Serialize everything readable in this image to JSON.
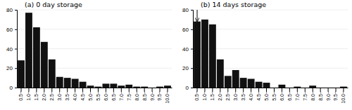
{
  "chart_data": [
    {
      "type": "bar",
      "title": "(a) 0 day storage",
      "categories": [
        "0.5~",
        "1.0~",
        "1.5~",
        "2.0~",
        "2.5~",
        "3.0~",
        "3.5~",
        "4.0~",
        "4.5~",
        "5.0~",
        "5.5~",
        "6.0~",
        "6.5~",
        "7.0~",
        "7.5~",
        "8.0~",
        "8.5~",
        "9.0~",
        "9.5~",
        "10.0~"
      ],
      "values": [
        28,
        77,
        62,
        47,
        29,
        11,
        10,
        9,
        6,
        2,
        1,
        4,
        4,
        2,
        3,
        1,
        1,
        0,
        1,
        2
      ],
      "color": "#111111",
      "ylim": [
        0,
        80
      ],
      "yticks": [
        0,
        20,
        40,
        60,
        80
      ],
      "grid": true
    },
    {
      "type": "bar",
      "title": "(b) 14 days storage",
      "categories": [
        "0.5~",
        "1.0~",
        "1.5~",
        "2.0~",
        "2.5~",
        "3.0~",
        "3.5~",
        "4.0~",
        "4.5~",
        "5.0~",
        "5.5~",
        "6.0~",
        "6.5~",
        "7.0~",
        "7.5~",
        "8.0~",
        "8.5~",
        "9.0~",
        "9.5~",
        "10.0~"
      ],
      "values": [
        68,
        70,
        65,
        29,
        12,
        18,
        10,
        9,
        6,
        5,
        0,
        3,
        0,
        1,
        0,
        2,
        0,
        0,
        0,
        1
      ],
      "color": "#111111",
      "ylim": [
        0,
        80
      ],
      "yticks": [
        0,
        20,
        40,
        60,
        80
      ],
      "grid": true,
      "annotations": [
        {
          "type": "arrow",
          "x": "0.5~",
          "y": 68,
          "y_from": 80
        }
      ]
    }
  ]
}
